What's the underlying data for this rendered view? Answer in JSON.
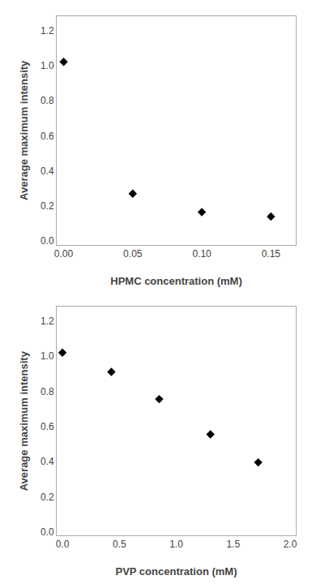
{
  "chart_data": [
    {
      "type": "scatter",
      "x": [
        0.0,
        0.05,
        0.1,
        0.15
      ],
      "values": [
        1.02,
        0.27,
        0.165,
        0.14
      ],
      "xlabel": "HPMC concentration (mM)",
      "ylabel": "Average maximum intensity",
      "xlim": [
        -0.005,
        0.168
      ],
      "xticks": [
        {
          "value": 0.0,
          "label": "0.00"
        },
        0.05,
        {
          "value": 0.1,
          "label": "0.10"
        },
        0.15
      ],
      "ylim": [
        -0.02,
        1.28
      ],
      "yticks": [
        {
          "value": 0.0,
          "label": "0.0"
        },
        0.2,
        0.4,
        0.6,
        0.8,
        {
          "value": 1.0,
          "label": "1.0"
        },
        1.2
      ],
      "marker": "diamond",
      "color": "black",
      "grid": false
    },
    {
      "type": "scatter",
      "x": [
        0.0,
        0.43,
        0.85,
        1.3,
        1.72
      ],
      "values": [
        1.02,
        0.91,
        0.755,
        0.555,
        0.395
      ],
      "xlabel": "PVP concentration (mM)",
      "ylabel": "Average maximum intensity",
      "xlim": [
        -0.05,
        2.05
      ],
      "xticks": [
        {
          "value": 0.0,
          "label": "0.0"
        },
        0.5,
        {
          "value": 1.0,
          "label": "1.0"
        },
        1.5,
        {
          "value": 2.0,
          "label": "2.0"
        }
      ],
      "ylim": [
        -0.02,
        1.28
      ],
      "yticks": [
        {
          "value": 0.0,
          "label": "0.0"
        },
        0.2,
        0.4,
        0.6,
        0.8,
        {
          "value": 1.0,
          "label": "1.0"
        },
        1.2
      ],
      "marker": "diamond",
      "color": "black",
      "grid": false
    }
  ]
}
